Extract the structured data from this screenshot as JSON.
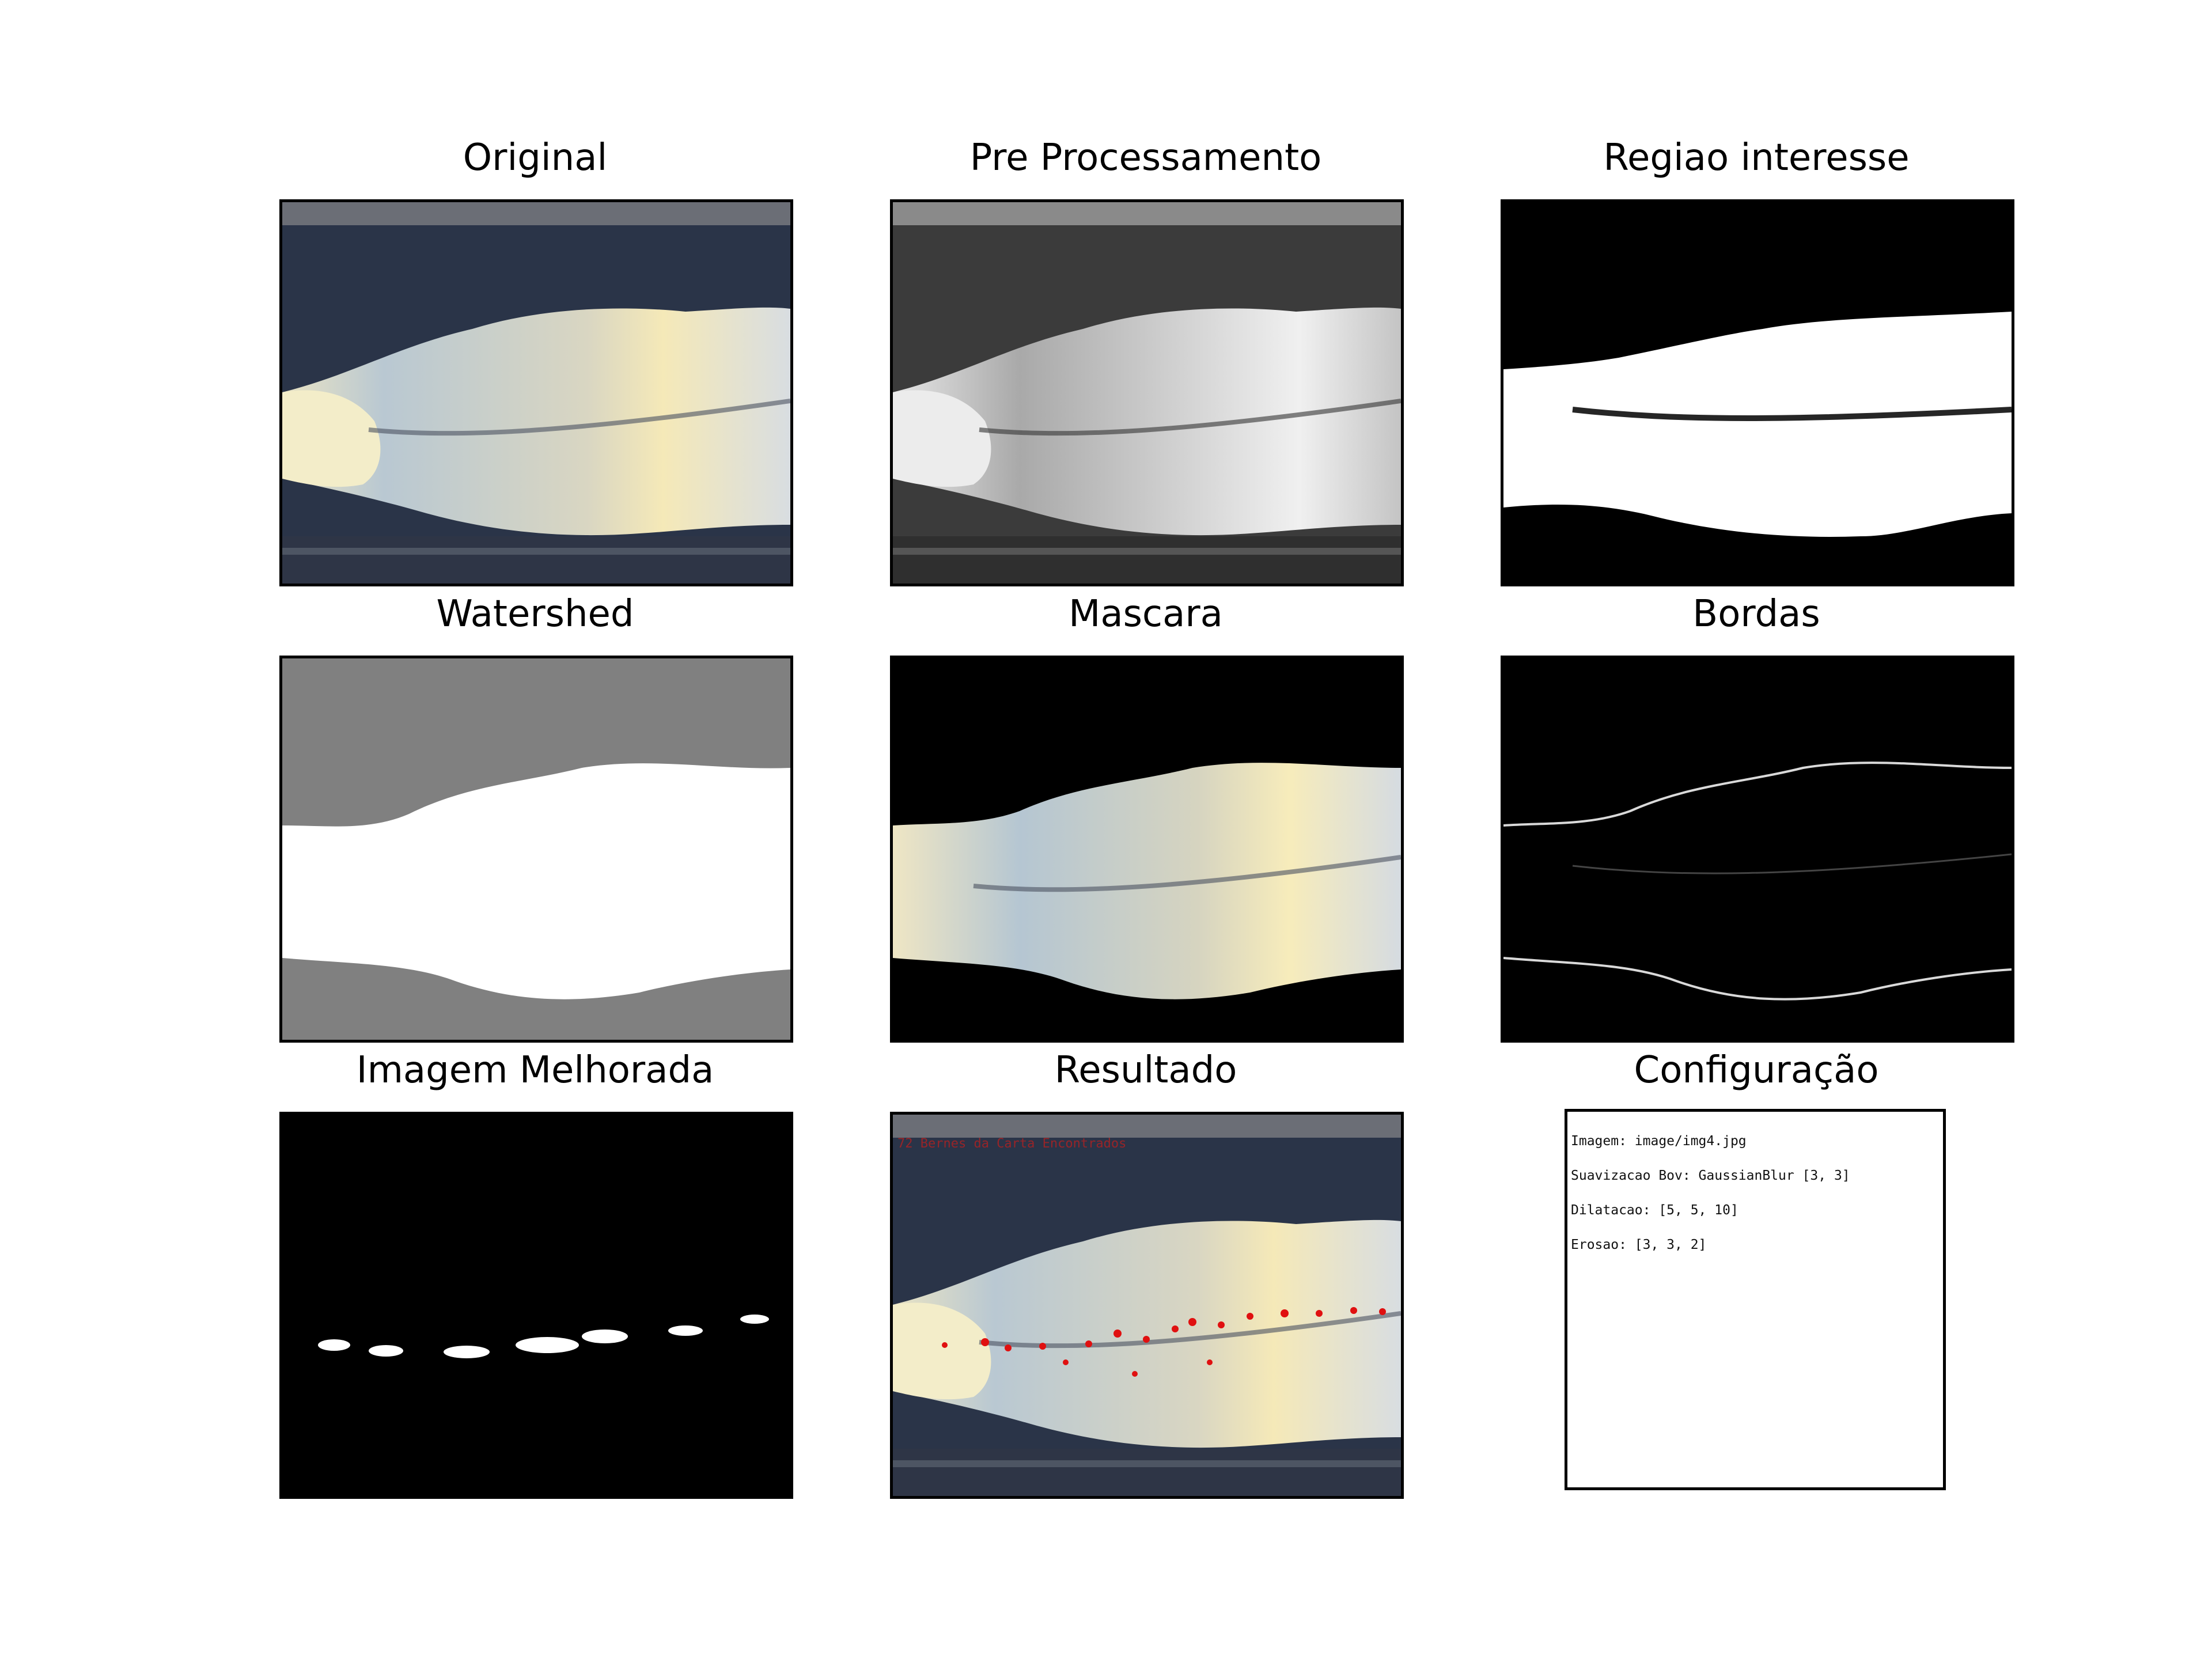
{
  "figure": {
    "panels": [
      {
        "id": "original",
        "title": "Original"
      },
      {
        "id": "preprocess",
        "title": "Pre Processamento"
      },
      {
        "id": "roi",
        "title": "Regiao interesse"
      },
      {
        "id": "watershed",
        "title": "Watershed"
      },
      {
        "id": "mask",
        "title": "Mascara"
      },
      {
        "id": "edges",
        "title": "Bordas"
      },
      {
        "id": "enhanced",
        "title": "Imagem Melhorada"
      },
      {
        "id": "result",
        "title": "Resultado"
      },
      {
        "id": "config",
        "title": "Configuração"
      }
    ],
    "result_overlay_text": "72 Bernes da Carta Encontrados",
    "config_lines": [
      "Imagem: image/img4.jpg",
      "Suavizacao Bov: GaussianBlur [3, 3]",
      "Dilatacao: [5, 5, 10]",
      "Erosao: [3, 3, 2]"
    ],
    "colors": {
      "background": "#ffffff",
      "frame": "#000000",
      "watershed_gray": "#808080",
      "result_marks": "#e01010"
    }
  }
}
